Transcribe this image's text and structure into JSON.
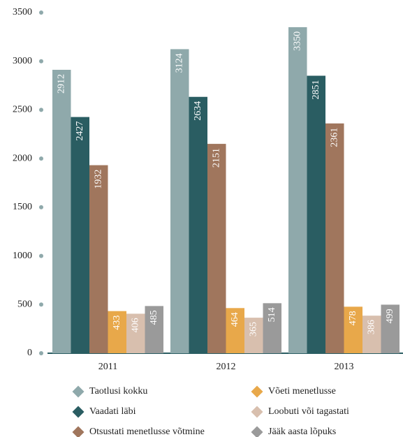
{
  "chart_data": {
    "type": "bar",
    "categories": [
      "2011",
      "2012",
      "2013"
    ],
    "series": [
      {
        "name": "Taotlusi kokku",
        "color": "#8fa9ab",
        "values": [
          2912,
          3124,
          3350
        ]
      },
      {
        "name": "Vaadati läbi",
        "color": "#2a5d62",
        "values": [
          2427,
          2634,
          2851
        ]
      },
      {
        "name": "Otsustati menetlusse võtmine",
        "color": "#a0765d",
        "values": [
          1932,
          2151,
          2361
        ]
      },
      {
        "name": "Võeti menetlusse",
        "color": "#e8a84a",
        "values": [
          433,
          464,
          478
        ]
      },
      {
        "name": "Loobuti või tagastati",
        "color": "#d8bfae",
        "values": [
          406,
          365,
          386
        ]
      },
      {
        "name": "Jääk aasta lõpuks",
        "color": "#9a9a9a",
        "values": [
          485,
          514,
          499
        ]
      }
    ],
    "ylim": [
      0,
      3500
    ],
    "yticks": [
      0,
      500,
      1000,
      1500,
      2000,
      2500,
      3000,
      3500
    ]
  }
}
